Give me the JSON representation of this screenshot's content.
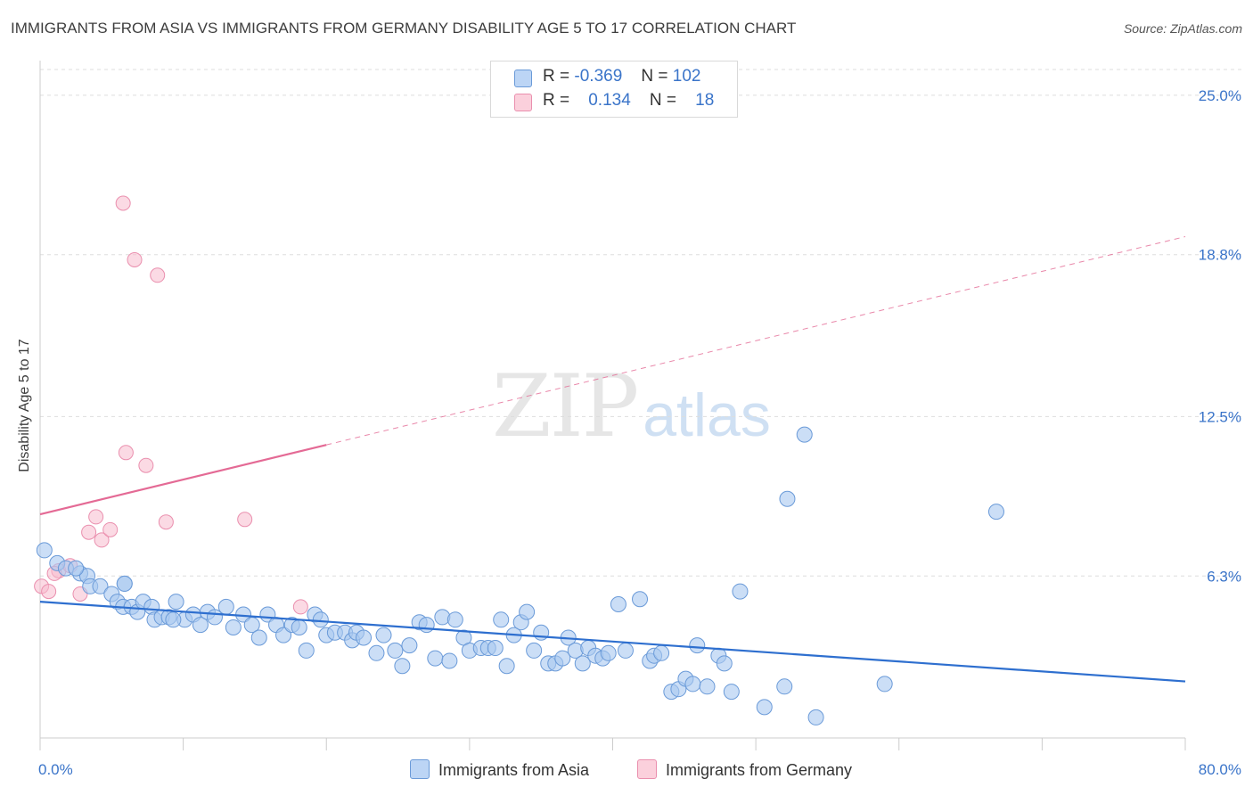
{
  "header": {
    "title": "IMMIGRANTS FROM ASIA VS IMMIGRANTS FROM GERMANY DISABILITY AGE 5 TO 17 CORRELATION CHART",
    "source": "Source: ZipAtlas.com"
  },
  "watermark": {
    "zip": "ZIP",
    "atlas": "atlas"
  },
  "legend": {
    "rows": [
      {
        "r_label": "R =",
        "r_value": "-0.369",
        "n_label": "N =",
        "n_value": "102"
      },
      {
        "r_label": "R =",
        "r_value": "0.134",
        "n_label": "N =",
        "n_value": "18"
      }
    ],
    "bottom": [
      "Immigrants from Asia",
      "Immigrants from Germany"
    ]
  },
  "colors": {
    "asia_fill": "#a9c8f0",
    "asia_stroke": "#6a9ad8",
    "asia_line": "#2e6fcf",
    "germany_fill": "#f7bccd",
    "germany_stroke": "#ea8fae",
    "germany_line": "#e46a95",
    "tick_label": "#3a74c9",
    "grid": "#dddddd"
  },
  "chart_data": {
    "type": "scatter",
    "title": "IMMIGRANTS FROM ASIA VS IMMIGRANTS FROM GERMANY DISABILITY AGE 5 TO 17 CORRELATION CHART",
    "xlabel": "",
    "ylabel": "Disability Age 5 to 17",
    "xlim": [
      0,
      80
    ],
    "ylim": [
      0,
      26
    ],
    "x_tick_labels": [
      "0.0%",
      "80.0%"
    ],
    "y_ticks": [
      6.3,
      12.5,
      18.8,
      25.0
    ],
    "y_tick_labels": [
      "6.3%",
      "12.5%",
      "18.8%",
      "25.0%"
    ],
    "grid": true,
    "series": [
      {
        "name": "Immigrants from Asia",
        "R": -0.369,
        "N": 102,
        "trend": {
          "x": [
            0,
            80
          ],
          "y": [
            5.3,
            2.2
          ],
          "style": "solid"
        },
        "points": [
          [
            0.3,
            7.3
          ],
          [
            1.2,
            6.8
          ],
          [
            1.8,
            6.6
          ],
          [
            2.8,
            6.4
          ],
          [
            3.3,
            6.3
          ],
          [
            3.5,
            5.9
          ],
          [
            4.2,
            5.9
          ],
          [
            5.0,
            5.6
          ],
          [
            5.4,
            5.3
          ],
          [
            5.8,
            5.1
          ],
          [
            5.9,
            6.0
          ],
          [
            6.4,
            5.1
          ],
          [
            6.8,
            4.9
          ],
          [
            7.2,
            5.3
          ],
          [
            7.8,
            5.1
          ],
          [
            8.0,
            4.6
          ],
          [
            8.5,
            4.7
          ],
          [
            9.0,
            4.7
          ],
          [
            9.5,
            5.3
          ],
          [
            10.1,
            4.6
          ],
          [
            10.7,
            4.8
          ],
          [
            11.2,
            4.4
          ],
          [
            11.7,
            4.9
          ],
          [
            12.2,
            4.7
          ],
          [
            13.0,
            5.1
          ],
          [
            13.5,
            4.3
          ],
          [
            14.2,
            4.8
          ],
          [
            14.8,
            4.4
          ],
          [
            15.3,
            3.9
          ],
          [
            15.9,
            4.8
          ],
          [
            16.5,
            4.4
          ],
          [
            17.0,
            4.0
          ],
          [
            17.6,
            4.4
          ],
          [
            18.1,
            4.3
          ],
          [
            18.6,
            3.4
          ],
          [
            19.2,
            4.8
          ],
          [
            19.6,
            4.6
          ],
          [
            20.0,
            4.0
          ],
          [
            20.6,
            4.1
          ],
          [
            21.3,
            4.1
          ],
          [
            21.8,
            3.8
          ],
          [
            22.1,
            4.1
          ],
          [
            22.6,
            3.9
          ],
          [
            23.5,
            3.3
          ],
          [
            24.0,
            4.0
          ],
          [
            24.8,
            3.4
          ],
          [
            25.3,
            2.8
          ],
          [
            25.8,
            3.6
          ],
          [
            26.5,
            4.5
          ],
          [
            27.0,
            4.4
          ],
          [
            27.6,
            3.1
          ],
          [
            28.1,
            4.7
          ],
          [
            28.6,
            3.0
          ],
          [
            29.0,
            4.6
          ],
          [
            29.6,
            3.9
          ],
          [
            30.0,
            3.4
          ],
          [
            30.8,
            3.5
          ],
          [
            31.3,
            3.5
          ],
          [
            31.8,
            3.5
          ],
          [
            32.2,
            4.6
          ],
          [
            32.6,
            2.8
          ],
          [
            33.1,
            4.0
          ],
          [
            33.6,
            4.5
          ],
          [
            34.0,
            4.9
          ],
          [
            34.5,
            3.4
          ],
          [
            35.0,
            4.1
          ],
          [
            35.5,
            2.9
          ],
          [
            36.0,
            2.9
          ],
          [
            36.5,
            3.1
          ],
          [
            36.9,
            3.9
          ],
          [
            37.4,
            3.4
          ],
          [
            37.9,
            2.9
          ],
          [
            38.3,
            3.5
          ],
          [
            38.8,
            3.2
          ],
          [
            39.3,
            3.1
          ],
          [
            39.7,
            3.3
          ],
          [
            40.4,
            5.2
          ],
          [
            40.9,
            3.4
          ],
          [
            41.9,
            5.4
          ],
          [
            42.6,
            3.0
          ],
          [
            42.9,
            3.2
          ],
          [
            43.4,
            3.3
          ],
          [
            44.1,
            1.8
          ],
          [
            44.6,
            1.9
          ],
          [
            45.1,
            2.3
          ],
          [
            45.6,
            2.1
          ],
          [
            45.9,
            3.6
          ],
          [
            46.6,
            2.0
          ],
          [
            47.4,
            3.2
          ],
          [
            47.8,
            2.9
          ],
          [
            48.3,
            1.8
          ],
          [
            48.9,
            5.7
          ],
          [
            50.6,
            1.2
          ],
          [
            52.0,
            2.0
          ],
          [
            52.2,
            9.3
          ],
          [
            53.4,
            11.8
          ],
          [
            54.2,
            0.8
          ],
          [
            59.0,
            2.1
          ],
          [
            66.8,
            8.8
          ],
          [
            5.9,
            6.0
          ],
          [
            2.5,
            6.6
          ],
          [
            9.3,
            4.6
          ]
        ]
      },
      {
        "name": "Immigrants from Germany",
        "R": 0.134,
        "N": 18,
        "trend_solid": {
          "x": [
            0,
            20
          ],
          "y": [
            8.7,
            11.4
          ]
        },
        "trend_dashed": {
          "x": [
            20,
            80
          ],
          "y": [
            11.4,
            19.5
          ]
        },
        "points": [
          [
            0.1,
            5.9
          ],
          [
            0.6,
            5.7
          ],
          [
            1.3,
            6.5
          ],
          [
            2.1,
            6.7
          ],
          [
            2.8,
            5.6
          ],
          [
            3.4,
            8.0
          ],
          [
            3.9,
            8.6
          ],
          [
            4.3,
            7.7
          ],
          [
            4.9,
            8.1
          ],
          [
            5.8,
            20.8
          ],
          [
            6.0,
            11.1
          ],
          [
            6.6,
            18.6
          ],
          [
            7.4,
            10.6
          ],
          [
            8.2,
            18.0
          ],
          [
            8.8,
            8.4
          ],
          [
            14.3,
            8.5
          ],
          [
            18.2,
            5.1
          ],
          [
            1.0,
            6.4
          ]
        ]
      }
    ]
  }
}
